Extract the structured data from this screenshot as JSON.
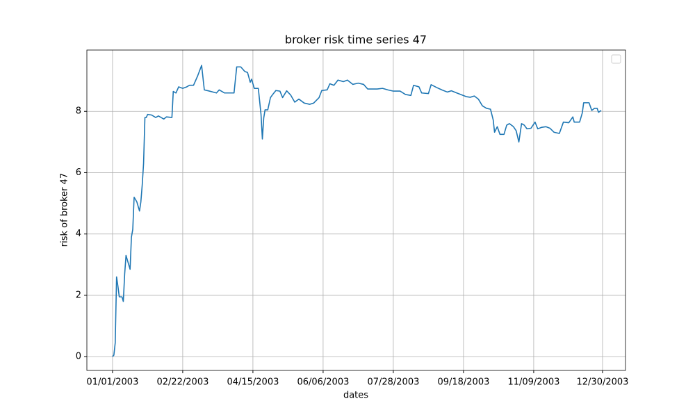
{
  "chart_data": {
    "type": "line",
    "title": "broker risk time series 47",
    "x_label": "dates",
    "y_label": "risk of broker 47",
    "x": [
      "01/01/2003",
      "01/02/2003",
      "01/03/2003",
      "01/04/2003",
      "01/05/2003",
      "01/06/2003",
      "01/08/2003",
      "01/09/2003",
      "01/10/2003",
      "01/11/2003",
      "01/13/2003",
      "01/14/2003",
      "01/15/2003",
      "01/16/2003",
      "01/17/2003",
      "01/19/2003",
      "01/21/2003",
      "01/22/2003",
      "01/23/2003",
      "01/24/2003",
      "01/25/2003",
      "01/26/2003",
      "01/27/2003",
      "01/30/2003",
      "02/02/2003",
      "02/04/2003",
      "02/08/2003",
      "02/10/2003",
      "02/14/2003",
      "02/15/2003",
      "02/17/2003",
      "02/19/2003",
      "02/22/2003",
      "02/25/2003",
      "02/27/2003",
      "03/02/2003",
      "03/05/2003",
      "03/08/2003",
      "03/10/2003",
      "03/13/2003",
      "03/19/2003",
      "03/21/2003",
      "03/25/2003",
      "03/29/2003",
      "04/01/2003",
      "04/03/2003",
      "04/06/2003",
      "04/09/2003",
      "04/11/2003",
      "04/13/2003",
      "04/14/2003",
      "04/16/2003",
      "04/19/2003",
      "04/21/2003",
      "04/22/2003",
      "04/23/2003",
      "04/24/2003",
      "04/26/2003",
      "04/28/2003",
      "04/30/2003",
      "05/02/2003",
      "05/05/2003",
      "05/07/2003",
      "05/10/2003",
      "05/13/2003",
      "05/16/2003",
      "05/19/2003",
      "05/23/2003",
      "05/27/2003",
      "05/30/2003",
      "06/03/2003",
      "06/05/2003",
      "06/09/2003",
      "06/11/2003",
      "06/14/2003",
      "06/17/2003",
      "06/21/2003",
      "06/24/2003",
      "06/28/2003",
      "07/02/2003",
      "07/06/2003",
      "07/09/2003",
      "07/13/2003",
      "07/16/2003",
      "07/20/2003",
      "07/24/2003",
      "07/28/2003",
      "08/02/2003",
      "08/06/2003",
      "08/10/2003",
      "08/12/2003",
      "08/16/2003",
      "08/18/2003",
      "08/23/2003",
      "08/25/2003",
      "08/29/2003",
      "09/02/2003",
      "09/06/2003",
      "09/09/2003",
      "09/13/2003",
      "09/16/2003",
      "09/20/2003",
      "09/23/2003",
      "09/26/2003",
      "09/29/2003",
      "10/02/2003",
      "10/05/2003",
      "10/08/2003",
      "10/10/2003",
      "10/11/2003",
      "10/13/2003",
      "10/15/2003",
      "10/18/2003",
      "10/20/2003",
      "10/22/2003",
      "10/25/2003",
      "10/27/2003",
      "10/29/2003",
      "10/31/2003",
      "11/02/2003",
      "11/04/2003",
      "11/07/2003",
      "11/10/2003",
      "11/12/2003",
      "11/15/2003",
      "11/18/2003",
      "11/21/2003",
      "11/24/2003",
      "11/28/2003",
      "12/01/2003",
      "12/05/2003",
      "12/08/2003",
      "12/09/2003",
      "12/13/2003",
      "12/15/2003",
      "12/16/2003",
      "12/20/2003",
      "12/22/2003",
      "12/24/2003",
      "12/26/2003",
      "12/27/2003",
      "12/29/2003"
    ],
    "values": [
      0,
      0.05,
      0.45,
      2.6,
      2.3,
      1.95,
      1.95,
      1.8,
      2.7,
      3.3,
      3.0,
      2.85,
      3.9,
      4.15,
      5.2,
      5.05,
      4.75,
      5.05,
      5.6,
      6.3,
      7.8,
      7.8,
      7.9,
      7.88,
      7.8,
      7.85,
      7.75,
      7.82,
      7.8,
      8.65,
      8.6,
      8.8,
      8.75,
      8.8,
      8.85,
      8.85,
      9.15,
      9.5,
      8.7,
      8.67,
      8.6,
      8.7,
      8.6,
      8.6,
      8.6,
      9.45,
      9.45,
      9.3,
      9.27,
      8.95,
      9.05,
      8.75,
      8.75,
      7.9,
      7.1,
      7.78,
      8.05,
      8.05,
      8.45,
      8.57,
      8.68,
      8.66,
      8.45,
      8.67,
      8.53,
      8.3,
      8.4,
      8.27,
      8.23,
      8.27,
      8.45,
      8.68,
      8.7,
      8.9,
      8.85,
      9.02,
      8.97,
      9.02,
      8.88,
      8.92,
      8.88,
      8.73,
      8.73,
      8.73,
      8.75,
      8.7,
      8.66,
      8.66,
      8.55,
      8.52,
      8.85,
      8.8,
      8.6,
      8.58,
      8.87,
      8.78,
      8.7,
      8.63,
      8.67,
      8.6,
      8.55,
      8.48,
      8.46,
      8.5,
      8.4,
      8.18,
      8.1,
      8.07,
      7.72,
      7.32,
      7.5,
      7.25,
      7.25,
      7.55,
      7.6,
      7.5,
      7.37,
      7.0,
      7.6,
      7.55,
      7.43,
      7.45,
      7.65,
      7.43,
      7.48,
      7.5,
      7.45,
      7.32,
      7.28,
      7.65,
      7.63,
      7.82,
      7.65,
      7.65,
      7.95,
      8.28,
      8.28,
      8.03,
      8.1,
      8.1,
      7.97,
      8.03
    ],
    "color": "#1f77b4",
    "xlim": [
      "12/13/2002",
      "01/16/2004"
    ],
    "xticks": [
      "01/01/2003",
      "02/22/2003",
      "04/15/2003",
      "06/06/2003",
      "07/28/2003",
      "09/18/2003",
      "11/09/2003",
      "12/30/2003"
    ],
    "ylim": [
      -0.45,
      10
    ],
    "yticks": [
      0,
      2,
      4,
      6,
      8
    ],
    "grid": true,
    "legend": "upper right"
  }
}
